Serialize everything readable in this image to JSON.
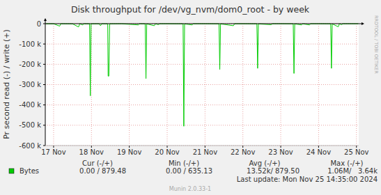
{
  "chart_data": {
    "type": "line",
    "title": "Disk throughput for /dev/vg_nvm/dom0_root - by week",
    "y_label": "Pr second read (-) / write (+)",
    "watermark": "RRDTOOL / TOBI OETIKER",
    "last_update": "Last update: Mon Nov 25 14:35:00 2024",
    "footer": "Munin 2.0.33-1",
    "x": [
      16.8,
      17.0,
      17.16,
      17.19,
      17.5,
      17.66,
      17.69,
      17.77,
      17.8,
      17.95,
      17.97,
      17.99,
      18.2,
      18.24,
      18.27,
      18.43,
      18.44,
      18.46,
      18.48,
      18.8,
      19.24,
      19.27,
      19.42,
      19.44,
      19.46,
      19.66,
      19.69,
      19.77,
      19.8,
      20.0,
      20.42,
      20.44,
      20.46,
      20.66,
      20.69,
      21.0,
      21.37,
      21.39,
      21.41,
      21.75,
      21.78,
      22.0,
      22.37,
      22.39,
      22.41,
      22.75,
      22.78,
      23.0,
      23.33,
      23.35,
      23.37,
      23.55,
      23.58,
      23.76,
      23.79,
      24.0,
      24.32,
      24.34,
      24.36,
      24.52,
      24.55,
      24.61,
      24.64,
      25.0,
      25.05
    ],
    "series": [
      {
        "name": "Bytes",
        "color": "#00cc00",
        "values": [
          -500,
          -500,
          -12000,
          -500,
          -1000,
          -16000,
          -500,
          -6000,
          -500,
          -1000,
          -355000,
          -1000,
          -500,
          -10000,
          -500,
          -1000,
          -258000,
          -258000,
          -1000,
          -500,
          -6000,
          -500,
          -1000,
          -270000,
          -1000,
          -10000,
          -500,
          -5000,
          -500,
          -500,
          -1000,
          -505000,
          -1000,
          -6000,
          -500,
          -500,
          -1000,
          -225000,
          -1000,
          -10000,
          -500,
          -500,
          -1000,
          -220000,
          -1000,
          -5000,
          -500,
          -500,
          -1000,
          -245000,
          -1000,
          -6000,
          -500,
          -6000,
          -500,
          -500,
          -1000,
          -220000,
          -1000,
          -15000,
          -500,
          -5000,
          -500,
          -500,
          -500
        ]
      }
    ],
    "xlim": [
      16.78,
      25.06
    ],
    "xticks": [
      {
        "value": 17,
        "label": "17 Nov"
      },
      {
        "value": 18,
        "label": "18 Nov"
      },
      {
        "value": 19,
        "label": "19 Nov"
      },
      {
        "value": 20,
        "label": "20 Nov"
      },
      {
        "value": 21,
        "label": "21 Nov"
      },
      {
        "value": 22,
        "label": "22 Nov"
      },
      {
        "value": 23,
        "label": "23 Nov"
      },
      {
        "value": 24,
        "label": "24 Nov"
      },
      {
        "value": 25,
        "label": "25 Nov"
      }
    ],
    "ylim": [
      -600000,
      0
    ],
    "yticks": [
      0,
      {
        "value": -100000,
        "label": "-100 k"
      },
      {
        "value": -200000,
        "label": "-200 k"
      },
      {
        "value": -300000,
        "label": "-300 k"
      },
      {
        "value": -400000,
        "label": "-400 k"
      },
      {
        "value": -500000,
        "label": "-500 k"
      },
      {
        "value": -600000,
        "label": "-600 k"
      }
    ],
    "grid": true,
    "stats": {
      "headers": [
        "Cur (-/+)",
        "Min (-/+)",
        "Avg (-/+)",
        "Max (-/+)"
      ],
      "values": [
        "0.00 / 879.48",
        "0.00 / 635.13",
        "13.52k/ 879.50",
        "1.06M/   3.64k"
      ]
    }
  }
}
